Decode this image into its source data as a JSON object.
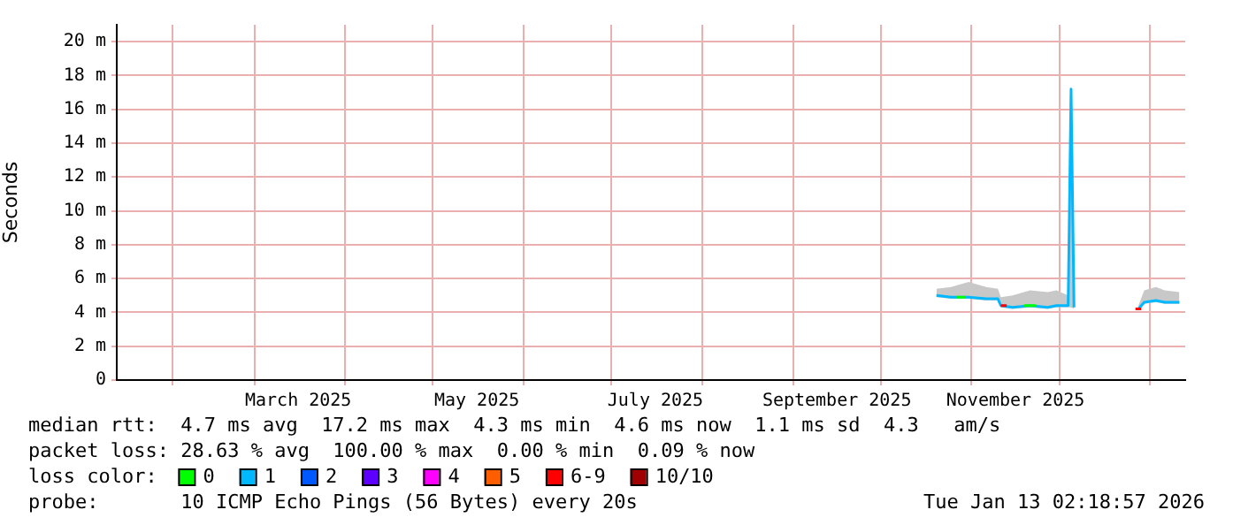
{
  "chart_data": {
    "type": "line",
    "ylabel": "Seconds",
    "legend_title": "loss color:",
    "legend": "bottom",
    "grid": true,
    "marker": "none",
    "line_style": "solid",
    "xlim": [
      "2025-01-13",
      "2026-01-13"
    ],
    "xticks": [
      {
        "value": "2025-02-01",
        "label": null
      },
      {
        "value": "2025-03-01",
        "label": null
      },
      {
        "value": "2025-03-16",
        "label": "March 2025"
      },
      {
        "value": "2025-04-01",
        "label": null
      },
      {
        "value": "2025-05-01",
        "label": null
      },
      {
        "value": "2025-05-16",
        "label": "May 2025"
      },
      {
        "value": "2025-06-01",
        "label": null
      },
      {
        "value": "2025-07-01",
        "label": null
      },
      {
        "value": "2025-07-16",
        "label": "July 2025"
      },
      {
        "value": "2025-08-01",
        "label": null
      },
      {
        "value": "2025-09-01",
        "label": null
      },
      {
        "value": "2025-09-16",
        "label": "September 2025"
      },
      {
        "value": "2025-10-01",
        "label": null
      },
      {
        "value": "2025-11-01",
        "label": null
      },
      {
        "value": "2025-11-16",
        "label": "November 2025"
      },
      {
        "value": "2025-12-01",
        "label": null
      },
      {
        "value": "2026-01-01",
        "label": null
      }
    ],
    "ylim": [
      0,
      21
    ],
    "yticks": [
      0,
      {
        "value": 2,
        "label": "2 m"
      },
      {
        "value": 4,
        "label": "4 m"
      },
      {
        "value": 6,
        "label": "6 m"
      },
      {
        "value": 8,
        "label": "8 m"
      },
      {
        "value": 10,
        "label": "10 m"
      },
      {
        "value": 12,
        "label": "12 m"
      },
      {
        "value": 14,
        "label": "14 m"
      },
      {
        "value": 16,
        "label": "16 m"
      },
      {
        "value": 18,
        "label": "18 m"
      },
      {
        "value": 20,
        "label": "20 m"
      }
    ],
    "series": [
      {
        "name": "0",
        "color": "#00ff00",
        "x": [
          "2025-10-27",
          "2025-10-30",
          null,
          "2025-11-19",
          "2025-11-23"
        ],
        "values": [
          4.9,
          4.9,
          null,
          4.4,
          4.4
        ]
      },
      {
        "name": "1",
        "color": "#00b8ff",
        "x": [
          "2025-10-20",
          "2025-10-25",
          "2025-10-31",
          "2025-11-06",
          "2025-11-10",
          "2025-11-11",
          "2025-11-15",
          "2025-11-21",
          "2025-11-27",
          "2025-11-30",
          "2025-12-04",
          "2025-12-05",
          "2025-12-06",
          "2025-12-15",
          "2025-12-28",
          "2025-12-30",
          "2026-01-03",
          "2026-01-06",
          "2026-01-11"
        ],
        "values": [
          5.0,
          4.9,
          4.9,
          4.8,
          4.8,
          4.4,
          4.3,
          4.4,
          4.3,
          4.4,
          4.4,
          17.2,
          4.3,
          null,
          4.2,
          4.6,
          4.7,
          4.6,
          4.6
        ],
        "lower": [
          4.9,
          4.8,
          4.8,
          4.7,
          4.7,
          4.3,
          4.2,
          4.3,
          4.2,
          4.3,
          4.3,
          4.3,
          4.2,
          null,
          4.1,
          4.5,
          4.6,
          4.5,
          4.5
        ],
        "upper": [
          5.4,
          5.5,
          5.8,
          5.5,
          5.4,
          4.9,
          5.0,
          5.3,
          5.2,
          5.3,
          5.0,
          17.2,
          4.9,
          null,
          4.4,
          5.3,
          5.5,
          5.3,
          5.2
        ]
      },
      {
        "name": "2",
        "color": "#0059ff"
      },
      {
        "name": "3",
        "color": "#5e00ff"
      },
      {
        "name": "4",
        "color": "#ff00ff"
      },
      {
        "name": "5",
        "color": "#ff5e00"
      },
      {
        "name": "6-9",
        "color": "#ff0000",
        "x": [
          "2025-11-11",
          "2025-11-13",
          null,
          "2025-12-27",
          "2025-12-29"
        ],
        "values": [
          4.4,
          4.4,
          null,
          4.2,
          4.2
        ]
      },
      {
        "name": "10/10",
        "color": "#a10000"
      }
    ],
    "annotations": [
      "median rtt:  4.7 ms avg  17.2 ms max  4.3 ms min  4.6 ms now  1.1 ms sd  4.3   am/s",
      "packet loss: 28.63 % avg  100.00 % max  0.00 % min  0.09 % now",
      "probe:       10 ICMP Echo Pings (56 Bytes) every 20s",
      "Tue Jan 13 02:18:57 2026"
    ]
  }
}
